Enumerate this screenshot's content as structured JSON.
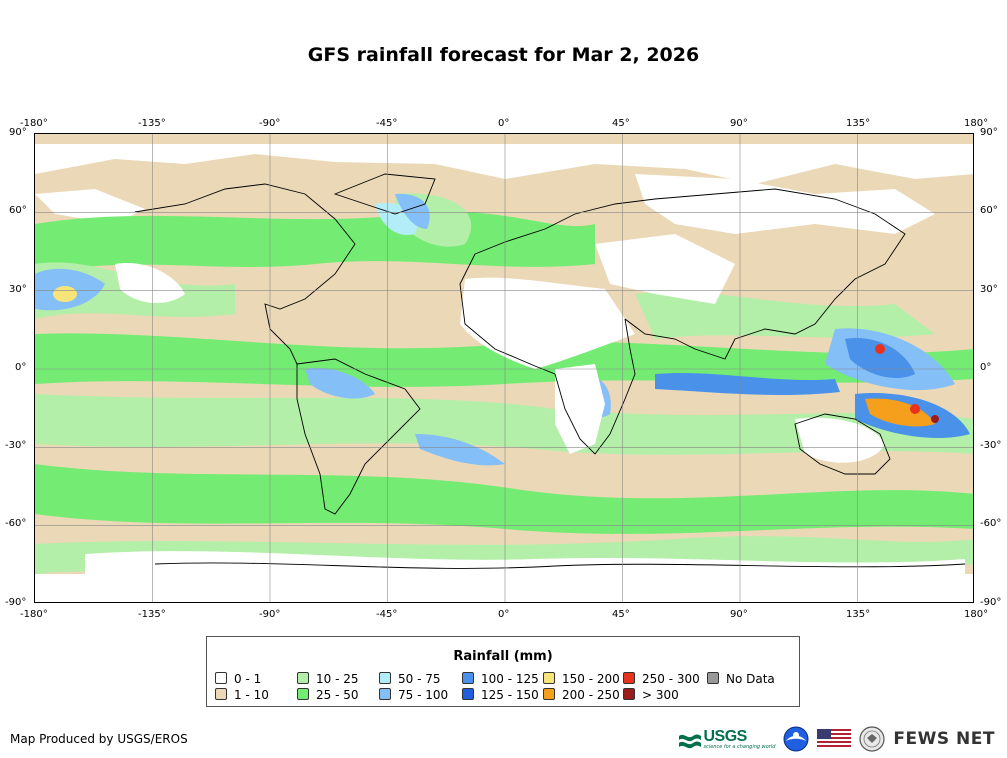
{
  "title": "GFS rainfall forecast for Mar 2, 2026",
  "map": {
    "lon_ticks": [
      "-180°",
      "-135°",
      "-90°",
      "-45°",
      "0°",
      "45°",
      "90°",
      "135°",
      "180°"
    ],
    "lat_ticks": [
      "90°",
      "60°",
      "30°",
      "0°",
      "-30°",
      "-60°",
      "-90°"
    ],
    "projection": "equirectangular",
    "extent": {
      "lon": [
        -180,
        180
      ],
      "lat": [
        -90,
        90
      ]
    },
    "gridlines": true
  },
  "legend": {
    "title": "Rainfall (mm)",
    "items": [
      {
        "label": "0 - 1",
        "color": "#ffffff"
      },
      {
        "label": "1 - 10",
        "color": "#ebd8b7"
      },
      {
        "label": "10 - 25",
        "color": "#b3efa8"
      },
      {
        "label": "25 - 50",
        "color": "#74ec73"
      },
      {
        "label": "50 - 75",
        "color": "#b3eef8"
      },
      {
        "label": "75 - 100",
        "color": "#84bff7"
      },
      {
        "label": "100 - 125",
        "color": "#4a91e9"
      },
      {
        "label": "125 - 150",
        "color": "#1f5fe0"
      },
      {
        "label": "150 - 200",
        "color": "#f8e57a"
      },
      {
        "label": "200 - 250",
        "color": "#f59f1c"
      },
      {
        "label": "250 - 300",
        "color": "#e8321c"
      },
      {
        "label": "> 300",
        "color": "#9b1c1c"
      },
      {
        "label": "No Data",
        "color": "#999999"
      }
    ]
  },
  "footer": {
    "credit": "Map Produced by USGS/EROS",
    "logos": {
      "usgs": "USGS",
      "usgs_tagline": "science for a changing world",
      "fews": "FEWS NET"
    }
  }
}
